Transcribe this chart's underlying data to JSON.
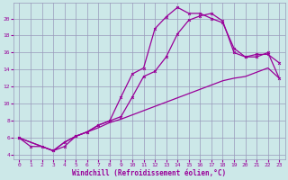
{
  "xlabel": "Windchill (Refroidissement éolien,°C)",
  "bg_color": "#cce8e8",
  "grid_color": "#9999bb",
  "line_color": "#990099",
  "xlim": [
    -0.5,
    23.5
  ],
  "ylim": [
    3.5,
    21.8
  ],
  "xticks": [
    0,
    1,
    2,
    3,
    4,
    5,
    6,
    7,
    8,
    9,
    10,
    11,
    12,
    13,
    14,
    15,
    16,
    17,
    18,
    19,
    20,
    21,
    22,
    23
  ],
  "yticks": [
    4,
    6,
    8,
    10,
    12,
    14,
    16,
    18,
    20
  ],
  "curve1_x": [
    0,
    1,
    2,
    3,
    4,
    5,
    6,
    7,
    8,
    9,
    10,
    11,
    12,
    13,
    14,
    15,
    16,
    17,
    18,
    19,
    20,
    21,
    22,
    23
  ],
  "curve1_y": [
    6.0,
    5.0,
    5.0,
    4.5,
    5.0,
    6.2,
    6.7,
    7.5,
    8.0,
    10.8,
    13.5,
    14.2,
    18.8,
    20.2,
    21.3,
    20.6,
    20.6,
    20.0,
    19.5,
    16.5,
    15.5,
    15.8,
    15.8,
    14.8
  ],
  "curve2_x": [
    0,
    3,
    4,
    5,
    6,
    7,
    8,
    9,
    10,
    11,
    12,
    13,
    14,
    15,
    16,
    17,
    18,
    19,
    20,
    21,
    22,
    23
  ],
  "curve2_y": [
    6.0,
    4.5,
    5.5,
    6.2,
    6.7,
    7.5,
    8.0,
    8.5,
    10.8,
    13.2,
    13.8,
    15.5,
    18.2,
    19.8,
    20.3,
    20.6,
    19.7,
    16.0,
    15.5,
    15.5,
    16.0,
    13.0
  ],
  "curve3_x": [
    0,
    3,
    4,
    5,
    6,
    7,
    8,
    9,
    10,
    11,
    12,
    13,
    14,
    15,
    16,
    17,
    18,
    19,
    20,
    21,
    22,
    23
  ],
  "curve3_y": [
    6.0,
    4.5,
    5.5,
    6.2,
    6.7,
    7.2,
    7.8,
    8.2,
    8.7,
    9.2,
    9.7,
    10.2,
    10.7,
    11.2,
    11.7,
    12.2,
    12.7,
    13.0,
    13.2,
    13.7,
    14.2,
    13.0
  ],
  "tick_fontsize": 4.5,
  "xlabel_fontsize": 5.5,
  "marker_size": 2.0,
  "line_width": 0.9
}
